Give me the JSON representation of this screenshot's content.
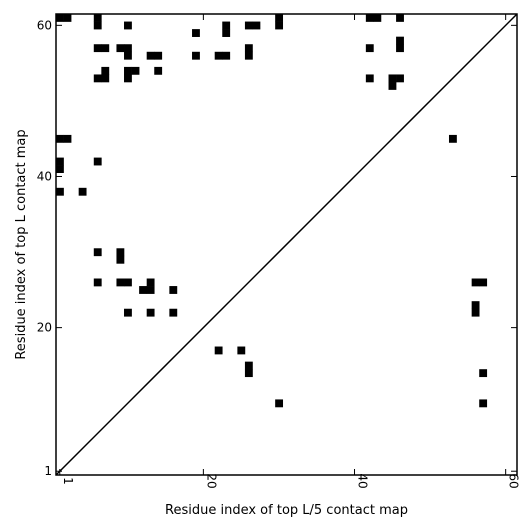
{
  "chart_data": {
    "type": "heatmap",
    "title": "",
    "xlabel": "Residue index of top L/5 contact map",
    "ylabel": "Residue index of top L contact map",
    "xlim": [
      0.5,
      61.5
    ],
    "ylim": [
      0.5,
      61.5
    ],
    "x_ticks": [
      1,
      20,
      40,
      60
    ],
    "y_ticks": [
      1,
      20,
      40,
      60
    ],
    "diagonal": true,
    "grid": false,
    "cell_color": "#000000",
    "upper_triangle_contacts": [
      [
        1,
        61
      ],
      [
        2,
        61
      ],
      [
        6,
        61
      ],
      [
        6,
        60
      ],
      [
        10,
        60
      ],
      [
        23,
        60
      ],
      [
        23,
        59
      ],
      [
        26,
        60
      ],
      [
        27,
        60
      ],
      [
        30,
        61
      ],
      [
        30,
        60
      ],
      [
        42,
        61
      ],
      [
        43,
        61
      ],
      [
        46,
        61
      ],
      [
        19,
        59
      ],
      [
        6,
        57
      ],
      [
        7,
        57
      ],
      [
        9,
        57
      ],
      [
        10,
        57
      ],
      [
        10,
        56
      ],
      [
        13,
        56
      ],
      [
        14,
        56
      ],
      [
        19,
        56
      ],
      [
        22,
        56
      ],
      [
        23,
        56
      ],
      [
        26,
        57
      ],
      [
        26,
        56
      ],
      [
        42,
        57
      ],
      [
        46,
        58
      ],
      [
        46,
        57
      ],
      [
        7,
        54
      ],
      [
        7,
        53
      ],
      [
        6,
        53
      ],
      [
        10,
        54
      ],
      [
        11,
        54
      ],
      [
        10,
        53
      ],
      [
        14,
        54
      ],
      [
        42,
        53
      ],
      [
        45,
        53
      ],
      [
        46,
        53
      ],
      [
        45,
        52
      ],
      [
        53,
        45
      ],
      [
        1,
        45
      ],
      [
        2,
        45
      ],
      [
        1,
        42
      ],
      [
        1,
        41
      ],
      [
        6,
        42
      ],
      [
        1,
        38
      ],
      [
        4,
        38
      ],
      [
        6,
        30
      ],
      [
        9,
        30
      ],
      [
        9,
        29
      ],
      [
        6,
        26
      ],
      [
        9,
        26
      ],
      [
        10,
        26
      ],
      [
        13,
        26
      ],
      [
        12,
        25
      ],
      [
        13,
        25
      ],
      [
        16,
        25
      ],
      [
        10,
        22
      ],
      [
        13,
        22
      ],
      [
        16,
        22
      ]
    ],
    "lower_triangle_contacts": [
      [
        56,
        26
      ],
      [
        57,
        26
      ],
      [
        56,
        23
      ],
      [
        56,
        22
      ],
      [
        22,
        17
      ],
      [
        25,
        17
      ],
      [
        26,
        15
      ],
      [
        26,
        14
      ],
      [
        57,
        14
      ],
      [
        30,
        10
      ],
      [
        57,
        10
      ]
    ]
  }
}
